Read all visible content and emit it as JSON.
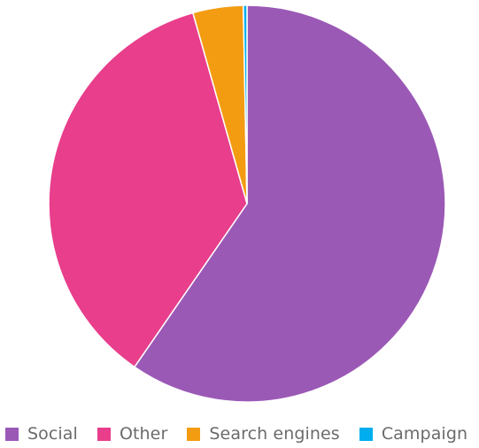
{
  "chart_data": {
    "type": "pie",
    "categories": [
      "Social",
      "Other",
      "Search engines",
      "Campaign"
    ],
    "values": [
      59.6,
      36.0,
      4.1,
      0.3
    ],
    "colors": [
      "#9b59b6",
      "#e83e8c",
      "#f39c12",
      "#00aeef"
    ],
    "legend_position": "bottom"
  }
}
